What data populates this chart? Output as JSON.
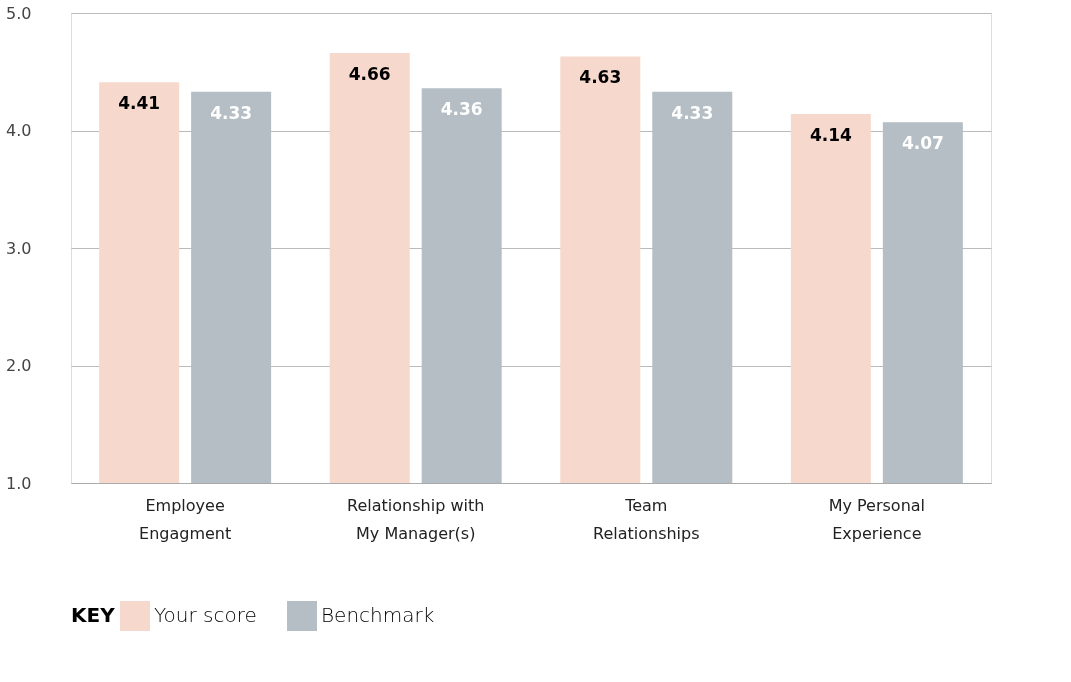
{
  "chart_data": {
    "type": "bar",
    "categories": [
      "Employee\nEngagment",
      "Relationship with\nMy Manager(s)",
      "Team\nRelationships",
      "My Personal\nExperience"
    ],
    "series": [
      {
        "name": "Your score",
        "color": "#f6d8cc",
        "values": [
          4.41,
          4.66,
          4.63,
          4.14
        ]
      },
      {
        "name": "Benchmark",
        "color": "#b5bec4",
        "values": [
          4.33,
          4.36,
          4.33,
          4.07
        ]
      }
    ],
    "ylim": [
      1.0,
      5.0
    ],
    "yticks": [
      {
        "value": 1,
        "label": "1.0"
      },
      {
        "value": 2,
        "label": "2.0"
      },
      {
        "value": 3,
        "label": "3.0"
      },
      {
        "value": 4,
        "label": "4.0"
      },
      {
        "value": 5,
        "label": "5.0"
      }
    ],
    "grid": "y",
    "legend": "bottom",
    "legend_title": "KEY",
    "data_labels": true
  }
}
